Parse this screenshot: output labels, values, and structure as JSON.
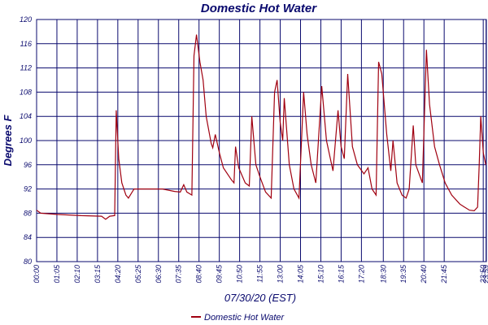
{
  "chart_data": {
    "type": "line",
    "title": "Domestic Hot Water",
    "ylabel": "Degrees F",
    "xlabel": "07/30/20 (EST)",
    "grid": true,
    "legend": "bottom",
    "xlim": [
      0,
      1440
    ],
    "ylim": [
      80,
      120
    ],
    "yticks": [
      80,
      84,
      88,
      92,
      96,
      100,
      104,
      108,
      112,
      116,
      120
    ],
    "xticks": [
      {
        "value": 0,
        "label": "00:00"
      },
      {
        "value": 65,
        "label": "01:05"
      },
      {
        "value": 130,
        "label": "02:10"
      },
      {
        "value": 195,
        "label": "03:15"
      },
      {
        "value": 260,
        "label": "04:20"
      },
      {
        "value": 325,
        "label": "05:25"
      },
      {
        "value": 390,
        "label": "06:30"
      },
      {
        "value": 455,
        "label": "07:35"
      },
      {
        "value": 520,
        "label": "08:40"
      },
      {
        "value": 585,
        "label": "09:45"
      },
      {
        "value": 650,
        "label": "10:50"
      },
      {
        "value": 715,
        "label": "11:55"
      },
      {
        "value": 780,
        "label": "13:00"
      },
      {
        "value": 845,
        "label": "14:05"
      },
      {
        "value": 910,
        "label": "15:10"
      },
      {
        "value": 975,
        "label": "16:15"
      },
      {
        "value": 1040,
        "label": "17:20"
      },
      {
        "value": 1110,
        "label": "18:30"
      },
      {
        "value": 1175,
        "label": "19:35"
      },
      {
        "value": 1240,
        "label": "20:40"
      },
      {
        "value": 1305,
        "label": "21:45"
      },
      {
        "value": 1430,
        "label": "23:50"
      },
      {
        "value": 1439,
        "label": "23:59"
      }
    ],
    "x": [
      0,
      13,
      65,
      143,
      208,
      221,
      234,
      250,
      255,
      263,
      273,
      286,
      294,
      312,
      351,
      403,
      442,
      460,
      471,
      481,
      497,
      504,
      512,
      523,
      533,
      543,
      559,
      564,
      572,
      585,
      598,
      624,
      632,
      637,
      647,
      668,
      681,
      689,
      702,
      715,
      733,
      751,
      762,
      770,
      780,
      788,
      793,
      809,
      824,
      840,
      855,
      866,
      879,
      894,
      913,
      928,
      949,
      965,
      975,
      985,
      996,
      1011,
      1027,
      1048,
      1061,
      1074,
      1087,
      1095,
      1105,
      1121,
      1134,
      1141,
      1154,
      1170,
      1183,
      1193,
      1206,
      1214,
      1235,
      1248,
      1258,
      1274,
      1290,
      1308,
      1329,
      1355,
      1370,
      1386,
      1401,
      1412,
      1417,
      1422,
      1430,
      1438
    ],
    "series": [
      {
        "name": "Domestic Hot Water",
        "color": "#a00010",
        "values": [
          88.5,
          88,
          87.8,
          87.6,
          87.5,
          87,
          87.5,
          87.6,
          105,
          97,
          93,
          91,
          90.5,
          92,
          92,
          92,
          91.6,
          91.5,
          92.7,
          91.5,
          91,
          114,
          117.5,
          113,
          110,
          104,
          99.5,
          98.8,
          101,
          98,
          95.5,
          93.5,
          93,
          99,
          95.5,
          93,
          92.5,
          104,
          96,
          94,
          91.5,
          90.5,
          108,
          110,
          103,
          100,
          107,
          96,
          92,
          90.5,
          108,
          101,
          96,
          93,
          109,
          100,
          95,
          105,
          99,
          97,
          111,
          99,
          96,
          94.5,
          95.5,
          92,
          91,
          113,
          111,
          101,
          95,
          100,
          93,
          91,
          90.5,
          92,
          102.5,
          96,
          93,
          115,
          106,
          99,
          96,
          93,
          91,
          89.5,
          89,
          88.5,
          88.4,
          89,
          96,
          104,
          98,
          96
        ]
      }
    ]
  }
}
